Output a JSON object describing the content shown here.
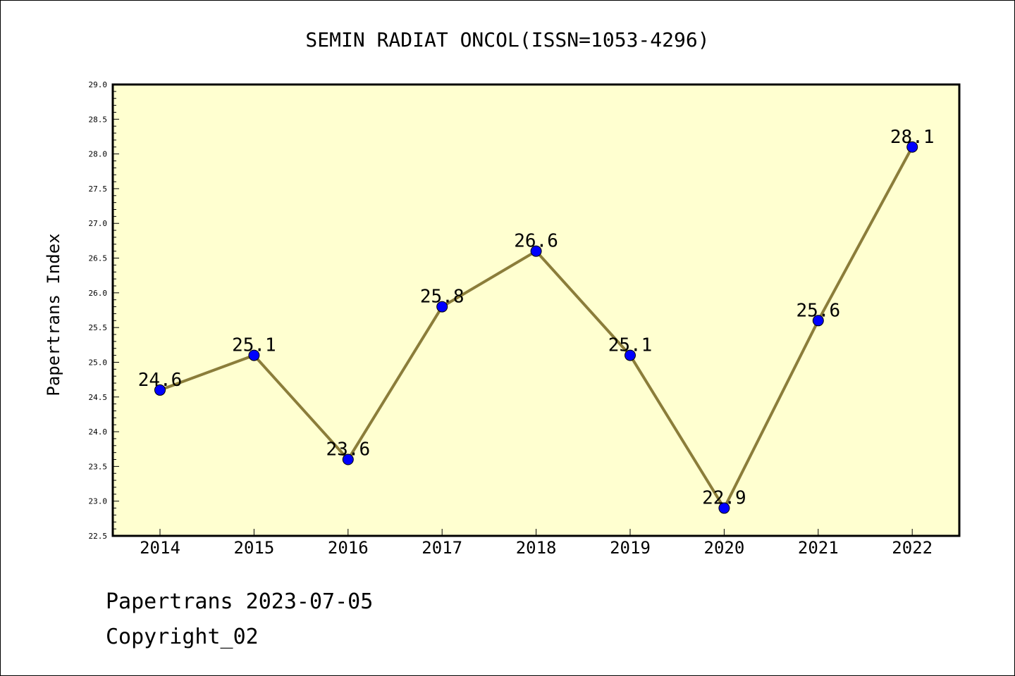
{
  "chart_data": {
    "type": "line",
    "title": "SEMIN RADIAT ONCOL(ISSN=1053-4296)",
    "xlabel": "",
    "ylabel": "Papertrans Index",
    "categories": [
      "2014",
      "2015",
      "2016",
      "2017",
      "2018",
      "2019",
      "2020",
      "2021",
      "2022"
    ],
    "values": [
      24.6,
      25.1,
      23.6,
      25.8,
      26.6,
      25.1,
      22.9,
      25.6,
      28.1
    ],
    "data_labels": [
      "24.6",
      "25.1",
      "23.6",
      "25.8",
      "26.6",
      "25.1",
      "22.9",
      "25.6",
      "28.1"
    ],
    "ylim": [
      22.5,
      29.0
    ],
    "yticks": [
      "22.5",
      "23.0",
      "23.5",
      "24.0",
      "24.5",
      "25.0",
      "25.5",
      "26.0",
      "26.5",
      "27.0",
      "27.5",
      "28.0",
      "28.5",
      "29.0"
    ],
    "grid": false,
    "legend": "none",
    "colors": {
      "plot_background": "#ffffd0",
      "line": "#8b7d3a",
      "marker": "#0000ff"
    }
  },
  "footer": {
    "source_line": "Papertrans 2023-07-05",
    "copyright": "Copyright_02"
  }
}
